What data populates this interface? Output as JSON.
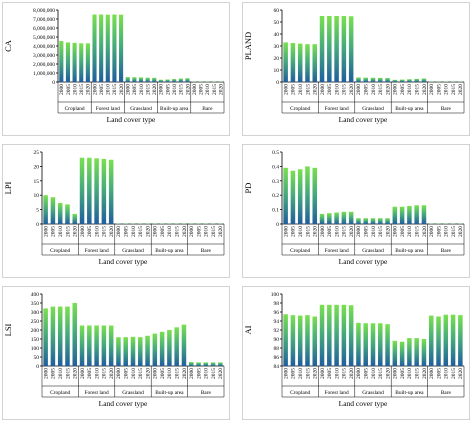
{
  "colors": {
    "bar_top": "#79e04e",
    "bar_bottom": "#1f5e9e",
    "frame": "#c8c8c8"
  },
  "chart_data": [
    {
      "id": "ca",
      "type": "bar",
      "ylabel": "CA",
      "xlabel": "Land cover type",
      "ylim": [
        0,
        8000000
      ],
      "yticks": [
        0,
        1000000,
        2000000,
        3000000,
        4000000,
        5000000,
        6000000,
        7000000,
        8000000
      ],
      "ytick_labels": [
        "0",
        "1,000,000",
        "2,000,000",
        "3,000,000",
        "4,000,000",
        "5,000,000",
        "6,000,000",
        "7,000,000",
        "8,000,000"
      ],
      "years": [
        "2000",
        "2005",
        "2010",
        "2015",
        "2020"
      ],
      "groups": [
        {
          "name": "Cropland",
          "values": [
            4550000,
            4400000,
            4350000,
            4300000,
            4300000
          ]
        },
        {
          "name": "Forest land",
          "values": [
            7500000,
            7500000,
            7480000,
            7500000,
            7480000
          ]
        },
        {
          "name": "Grassland",
          "values": [
            550000,
            530000,
            510000,
            480000,
            470000
          ]
        },
        {
          "name": "Built-up area",
          "values": [
            250000,
            280000,
            330000,
            380000,
            420000
          ]
        },
        {
          "name": "Bare",
          "values": [
            20000,
            20000,
            20000,
            20000,
            20000
          ]
        }
      ]
    },
    {
      "id": "pland",
      "type": "bar",
      "ylabel": "PLAND",
      "xlabel": "Land cover type",
      "ylim": [
        0,
        60
      ],
      "yticks": [
        0,
        10,
        20,
        30,
        40,
        50,
        60
      ],
      "ytick_labels": [
        "0",
        "10",
        "20",
        "30",
        "40",
        "50",
        "60"
      ],
      "years": [
        "2000",
        "2005",
        "2010",
        "2015",
        "2020"
      ],
      "groups": [
        {
          "name": "Cropland",
          "values": [
            33,
            32.5,
            32,
            31.5,
            31.5
          ]
        },
        {
          "name": "Forest land",
          "values": [
            55,
            55,
            55,
            55,
            54.8
          ]
        },
        {
          "name": "Grassland",
          "values": [
            3.8,
            3.6,
            3.5,
            3.4,
            3.3
          ]
        },
        {
          "name": "Built-up area",
          "values": [
            1.8,
            2.0,
            2.3,
            2.6,
            2.9
          ]
        },
        {
          "name": "Bare",
          "values": [
            0.1,
            0.1,
            0.1,
            0.1,
            0.1
          ]
        }
      ]
    },
    {
      "id": "lpi",
      "type": "bar",
      "ylabel": "LPI",
      "xlabel": "Land cover type",
      "ylim": [
        0,
        25
      ],
      "yticks": [
        0,
        5,
        10,
        15,
        20,
        25
      ],
      "ytick_labels": [
        "0",
        "5",
        "10",
        "15",
        "20",
        "25"
      ],
      "years": [
        "2000",
        "2005",
        "2010",
        "2015",
        "2020"
      ],
      "groups": [
        {
          "name": "Cropland",
          "values": [
            10,
            9.3,
            7.3,
            6.8,
            3.5
          ]
        },
        {
          "name": "Forest land",
          "values": [
            23,
            23,
            22.8,
            22.6,
            22.3
          ]
        },
        {
          "name": "Grassland",
          "values": [
            0.05,
            0.05,
            0.05,
            0.05,
            0.05
          ]
        },
        {
          "name": "Built-up area",
          "values": [
            0.05,
            0.05,
            0.05,
            0.05,
            0.05
          ]
        },
        {
          "name": "Bare",
          "values": [
            0.01,
            0.01,
            0.01,
            0.01,
            0.01
          ]
        }
      ]
    },
    {
      "id": "pd",
      "type": "bar",
      "ylabel": "PD",
      "xlabel": "Land cover type",
      "ylim": [
        0,
        0.5
      ],
      "yticks": [
        0,
        0.1,
        0.2,
        0.3,
        0.4,
        0.5
      ],
      "ytick_labels": [
        "0",
        "0.1",
        "0.2",
        "0.3",
        "0.4",
        "0.5"
      ],
      "years": [
        "2000",
        "2005",
        "2010",
        "2015",
        "2020"
      ],
      "groups": [
        {
          "name": "Cropland",
          "values": [
            0.39,
            0.37,
            0.38,
            0.4,
            0.39
          ]
        },
        {
          "name": "Forest land",
          "values": [
            0.07,
            0.075,
            0.08,
            0.085,
            0.085
          ]
        },
        {
          "name": "Grassland",
          "values": [
            0.04,
            0.04,
            0.04,
            0.04,
            0.04
          ]
        },
        {
          "name": "Built-up area",
          "values": [
            0.12,
            0.12,
            0.125,
            0.13,
            0.13
          ]
        },
        {
          "name": "Bare",
          "values": [
            0.002,
            0.002,
            0.002,
            0.002,
            0.002
          ]
        }
      ]
    },
    {
      "id": "lsi",
      "type": "bar",
      "ylabel": "LSI",
      "xlabel": "Land cover type",
      "ylim": [
        0,
        400
      ],
      "yticks": [
        0,
        50,
        100,
        150,
        200,
        250,
        300,
        350,
        400
      ],
      "ytick_labels": [
        "0",
        "50",
        "100",
        "150",
        "200",
        "250",
        "300",
        "350",
        "400"
      ],
      "years": [
        "2000",
        "2005",
        "2010",
        "2015",
        "2020"
      ],
      "groups": [
        {
          "name": "Cropland",
          "values": [
            320,
            330,
            330,
            330,
            350
          ]
        },
        {
          "name": "Forest land",
          "values": [
            225,
            225,
            225,
            225,
            225
          ]
        },
        {
          "name": "Grassland",
          "values": [
            160,
            160,
            162,
            160,
            168
          ]
        },
        {
          "name": "Built-up area",
          "values": [
            180,
            190,
            200,
            215,
            230
          ]
        },
        {
          "name": "Bare",
          "values": [
            22,
            20,
            20,
            20,
            20
          ]
        }
      ]
    },
    {
      "id": "ai",
      "type": "bar",
      "ylabel": "AI",
      "xlabel": "Land cover type",
      "ylim": [
        84,
        100
      ],
      "yticks": [
        84,
        86,
        88,
        90,
        92,
        94,
        96,
        98,
        100
      ],
      "ytick_labels": [
        "84",
        "86",
        "88",
        "90",
        "92",
        "94",
        "96",
        "98",
        "100"
      ],
      "years": [
        "2000",
        "2005",
        "2010",
        "2015",
        "2020"
      ],
      "groups": [
        {
          "name": "Cropland",
          "values": [
            95.5,
            95.3,
            95.2,
            95.3,
            95.0
          ]
        },
        {
          "name": "Forest land",
          "values": [
            97.6,
            97.6,
            97.6,
            97.6,
            97.5
          ]
        },
        {
          "name": "Grassland",
          "values": [
            93.6,
            93.5,
            93.5,
            93.5,
            93.3
          ]
        },
        {
          "name": "Built-up area",
          "values": [
            89.6,
            89.4,
            90.2,
            90.2,
            90.0
          ]
        },
        {
          "name": "Bare",
          "values": [
            95.2,
            95.0,
            95.4,
            95.4,
            95.3
          ]
        }
      ]
    }
  ]
}
